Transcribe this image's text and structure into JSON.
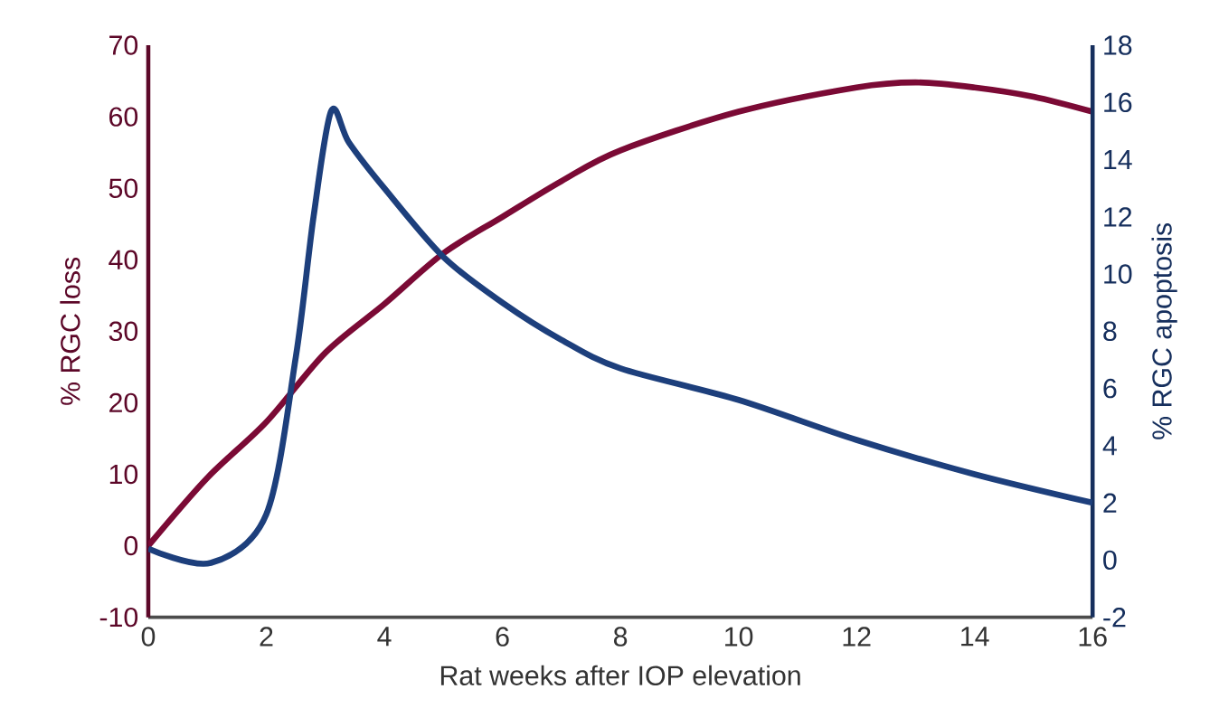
{
  "chart_data": {
    "type": "line",
    "xlabel": "Rat weeks after IOP elevation",
    "ylabel": "% RGC loss",
    "y2label": "% RGC apoptosis",
    "xlim": [
      0,
      16
    ],
    "xticks": [
      0,
      2,
      4,
      6,
      8,
      10,
      12,
      14,
      16
    ],
    "ylim": [
      -10,
      70
    ],
    "yticks": [
      -10,
      0,
      10,
      20,
      30,
      40,
      50,
      60,
      70
    ],
    "y2lim": [
      -2,
      18
    ],
    "y2ticks": [
      -2,
      0,
      2,
      4,
      6,
      8,
      10,
      12,
      14,
      16,
      18
    ],
    "grid": false,
    "marker": "none",
    "line_style": "solid",
    "series": [
      {
        "color": "#7b0a35",
        "x": [
          0,
          1,
          2,
          3,
          4,
          5,
          6,
          7,
          8,
          10,
          12,
          13,
          14,
          15,
          16
        ],
        "values": [
          0,
          9.5,
          17.3,
          27,
          33.8,
          40.9,
          46,
          51,
          55.3,
          60.7,
          64.1,
          64.8,
          64.1,
          62.8,
          60.7
        ]
      },
      {
        "color": "#1d3f7c",
        "axis": "y2",
        "x": [
          0,
          1.06,
          2,
          2.5,
          2.8,
          3.1,
          3.4,
          4,
          5,
          6,
          7,
          8,
          10,
          12,
          14,
          16
        ],
        "values": [
          0.4,
          -0.1,
          1.6,
          7.1,
          12,
          15.7,
          14.6,
          13,
          10.6,
          9,
          7.7,
          6.7,
          5.6,
          4.2,
          3,
          2
        ]
      }
    ]
  }
}
